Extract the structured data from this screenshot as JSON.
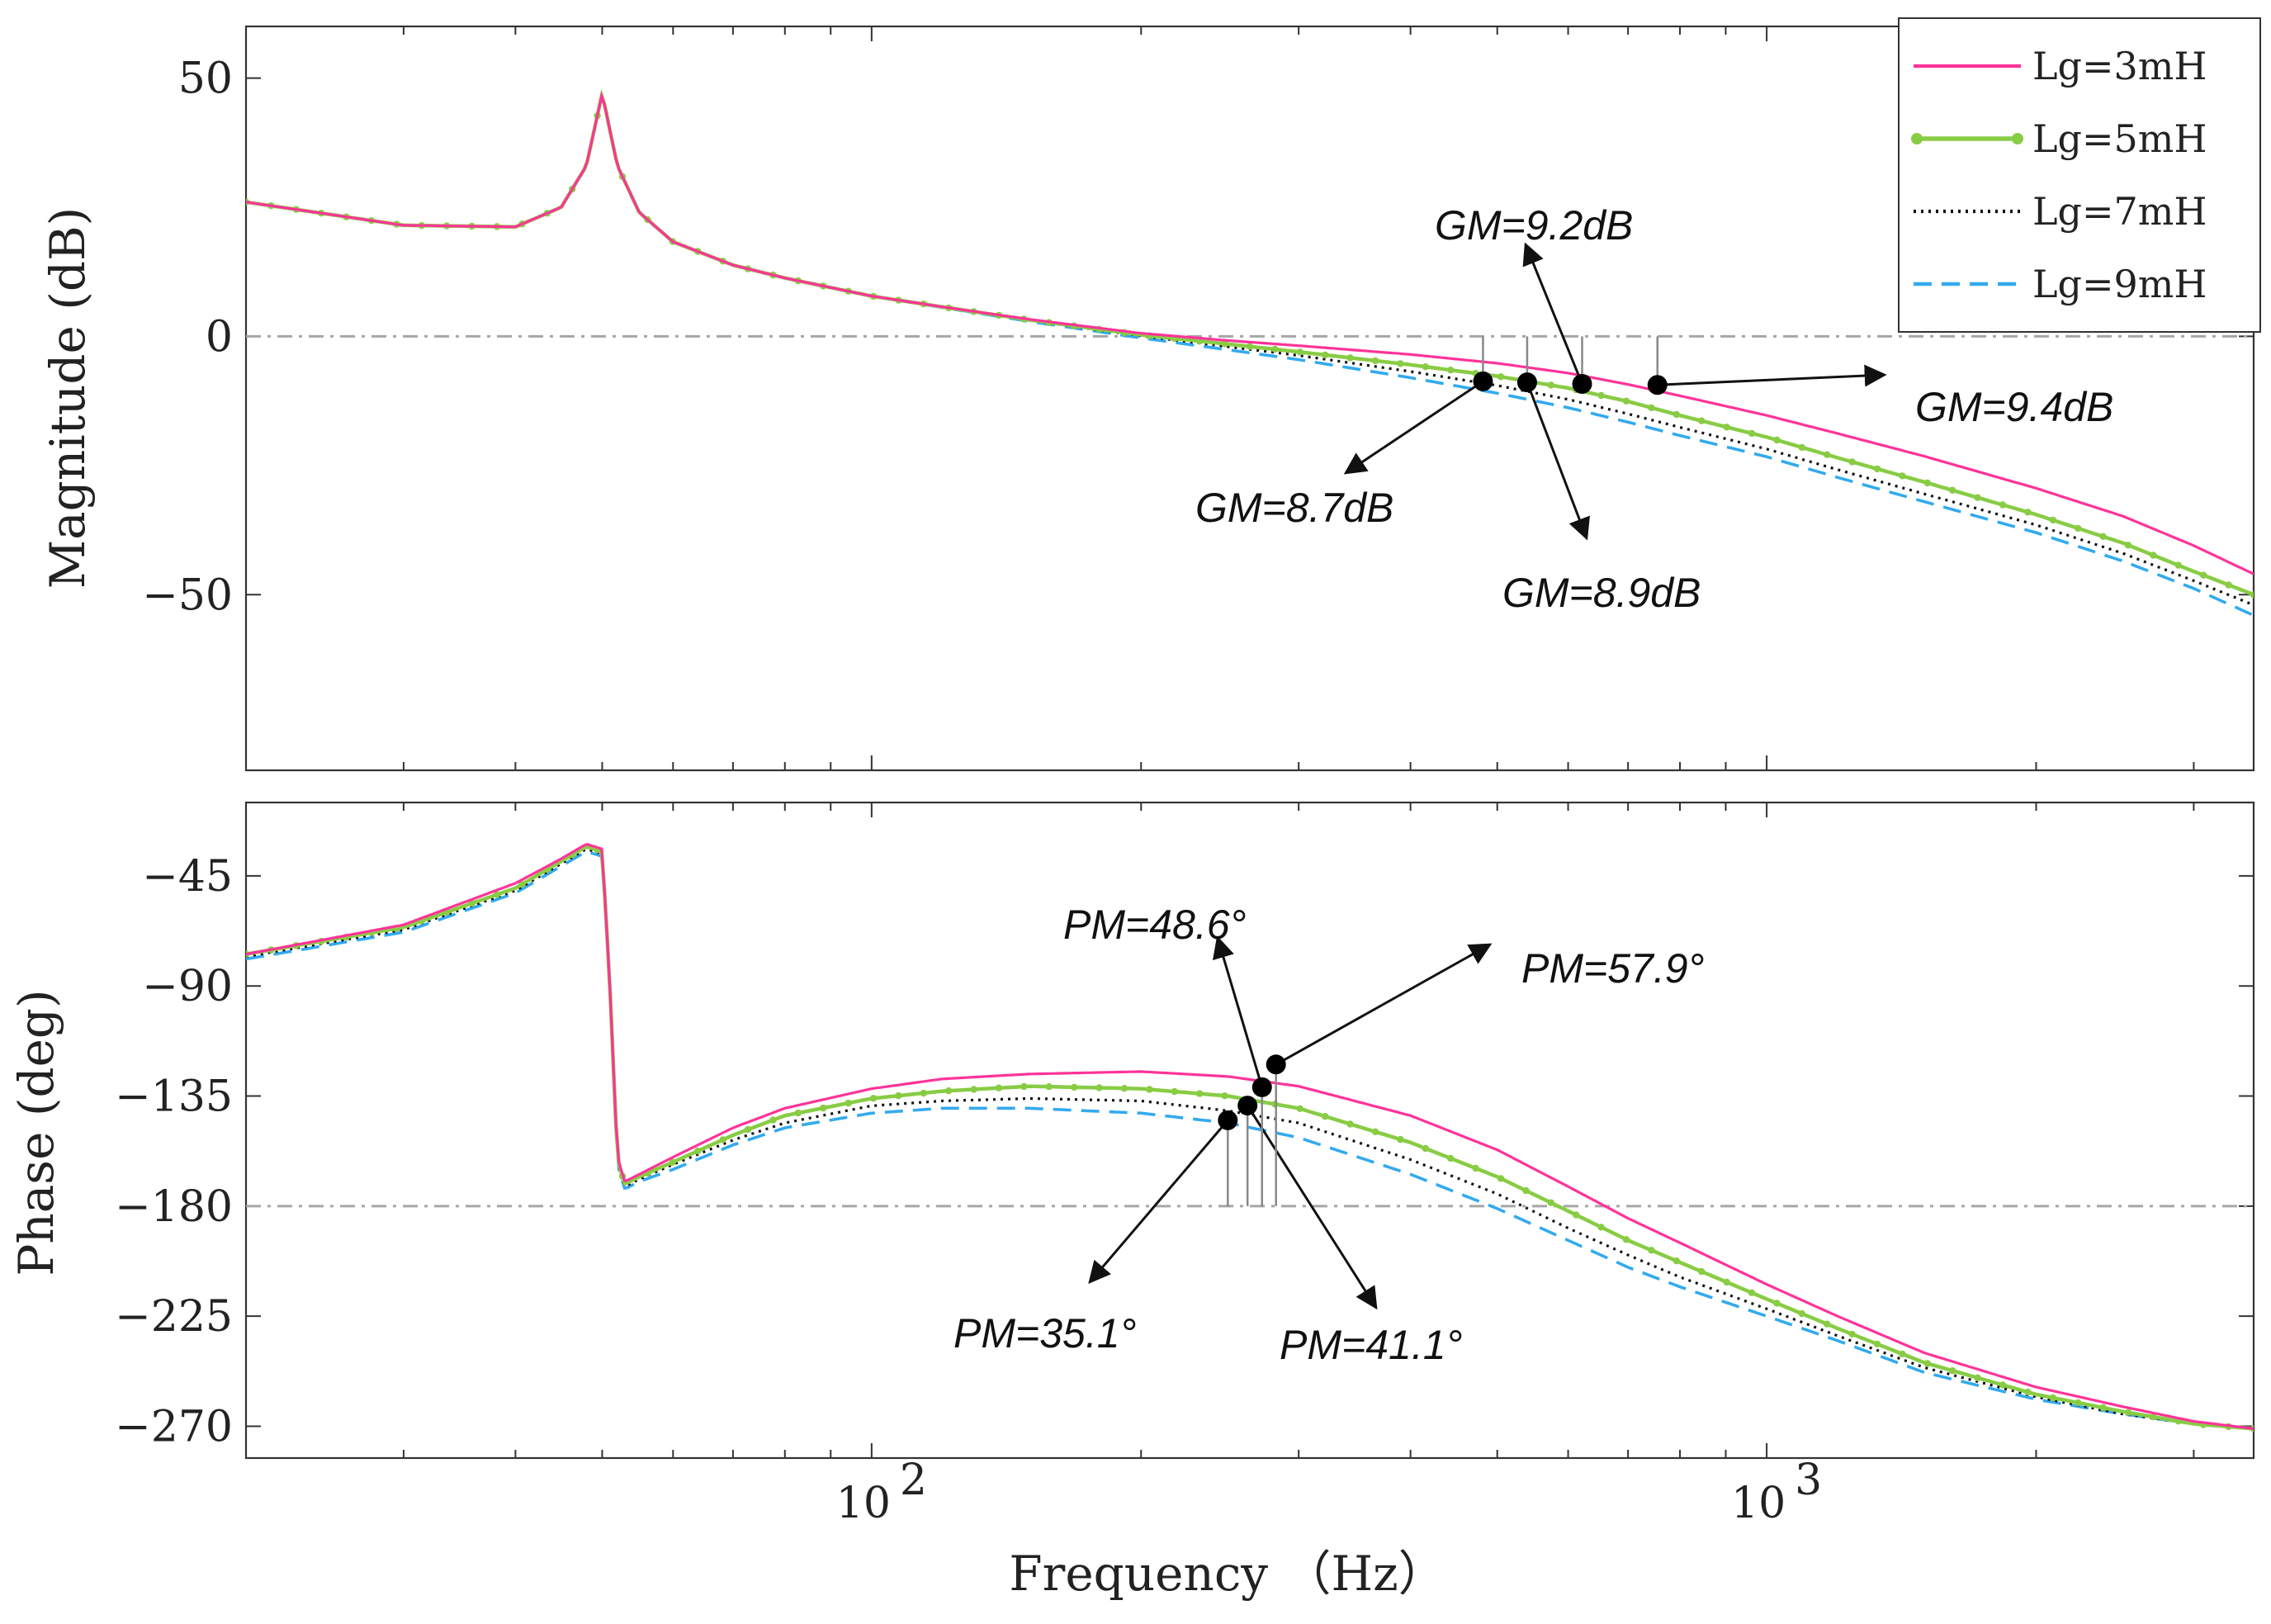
{
  "chart_data": [
    {
      "id": "magnitude",
      "type": "line",
      "ylabel": "Magnitude (dB)",
      "ylim": [
        -84,
        60
      ],
      "yticks": [
        50,
        0,
        -50
      ],
      "ytick_labels": [
        "50",
        "0",
        "−50"
      ],
      "xscale": "log",
      "xlim": [
        20,
        3500
      ],
      "reference_line": {
        "value": 0,
        "style": "dash-dot"
      },
      "series": [
        {
          "name": "Lg=3mH",
          "color": "#ff3399",
          "style": "solid",
          "x": [
            20,
            30,
            40,
            45,
            48,
            50,
            52,
            55,
            60,
            70,
            80,
            100,
            120,
            150,
            200,
            250,
            300,
            400,
            500,
            600,
            700,
            800,
            1000,
            1200,
            1500,
            2000,
            2500,
            3000,
            3500
          ],
          "y": [
            26,
            21.5,
            21.2,
            25,
            33,
            47,
            33,
            24,
            18.3,
            13.8,
            11.3,
            7.8,
            5.7,
            3.3,
            0.6,
            -0.8,
            -1.8,
            -3.5,
            -5.2,
            -7.1,
            -9.3,
            -11.5,
            -15.3,
            -18.8,
            -23.2,
            -29.4,
            -34.8,
            -40.5,
            -46
          ]
        },
        {
          "name": "Lg=5mH",
          "color": "#88cc44",
          "style": "solid-dotted",
          "x": [
            20,
            30,
            40,
            45,
            48,
            50,
            52,
            55,
            60,
            70,
            80,
            100,
            120,
            150,
            200,
            250,
            300,
            400,
            500,
            600,
            700,
            800,
            1000,
            1200,
            1500,
            2000,
            2500,
            3000,
            3500
          ],
          "y": [
            26,
            21.5,
            21.2,
            25,
            33,
            47,
            33,
            24,
            18.3,
            13.8,
            11.3,
            7.8,
            5.7,
            3.2,
            0.3,
            -1.5,
            -3.0,
            -5.5,
            -7.7,
            -10.0,
            -12.6,
            -15.3,
            -19.5,
            -23.5,
            -28.2,
            -34.5,
            -40.0,
            -45.5,
            -50
          ]
        },
        {
          "name": "Lg=7mH",
          "color": "#111111",
          "style": "dotted",
          "x": [
            20,
            30,
            40,
            45,
            48,
            50,
            52,
            55,
            60,
            70,
            80,
            100,
            120,
            150,
            200,
            250,
            300,
            400,
            500,
            600,
            700,
            800,
            1000,
            1200,
            1500,
            2000,
            2500,
            3000,
            3500
          ],
          "y": [
            26,
            21.5,
            21.2,
            25,
            33,
            47,
            33,
            24,
            18.3,
            13.8,
            11.3,
            7.8,
            5.7,
            3.1,
            0.1,
            -2.0,
            -3.7,
            -6.8,
            -9.5,
            -12.2,
            -15.0,
            -17.6,
            -21.8,
            -25.8,
            -30.5,
            -36.5,
            -42.0,
            -47.3,
            -52
          ]
        },
        {
          "name": "Lg=9mH",
          "color": "#33aaee",
          "style": "dashed",
          "x": [
            20,
            30,
            40,
            45,
            48,
            50,
            52,
            55,
            60,
            70,
            80,
            100,
            120,
            150,
            200,
            250,
            300,
            400,
            500,
            600,
            700,
            800,
            1000,
            1200,
            1500,
            2000,
            2500,
            3000,
            3500
          ],
          "y": [
            26,
            21.5,
            21.2,
            25,
            33,
            47,
            33,
            24,
            18.3,
            13.8,
            11.3,
            7.8,
            5.6,
            2.9,
            -0.3,
            -2.6,
            -4.5,
            -8.0,
            -11.0,
            -13.8,
            -16.6,
            -19.2,
            -23.3,
            -27.3,
            -32.0,
            -38.0,
            -43.5,
            -48.8,
            -54
          ]
        }
      ],
      "markers": [
        {
          "label": "GM=8.7dB",
          "freq": 482,
          "value": -8.7
        },
        {
          "label": "GM=8.9dB",
          "freq": 540,
          "value": -8.9
        },
        {
          "label": "GM=9.2dB",
          "freq": 622,
          "value": -9.2
        },
        {
          "label": "GM=9.4dB",
          "freq": 755,
          "value": -9.4
        }
      ]
    },
    {
      "id": "phase",
      "type": "line",
      "xlabel": "Frequency （Hz）",
      "ylabel": "Phase (deg)",
      "ylim": [
        -283,
        -15
      ],
      "yticks": [
        -45,
        -90,
        -135,
        -180,
        -225,
        -270
      ],
      "ytick_labels": [
        "−45",
        "−90",
        "−135",
        "−180",
        "−225",
        "−270"
      ],
      "xscale": "log",
      "xlim": [
        20,
        3500
      ],
      "xticks": [
        100,
        1000
      ],
      "xtick_bases": [
        "10",
        "10"
      ],
      "xtick_exps": [
        "2",
        "3"
      ],
      "reference_line": {
        "value": -180,
        "style": "dash-dot"
      },
      "series": [
        {
          "name": "Lg=3mH",
          "color": "#ff3399",
          "style": "solid",
          "x": [
            20,
            30,
            40,
            45,
            48,
            50,
            51,
            52,
            53,
            55,
            60,
            70,
            80,
            100,
            120,
            150,
            200,
            250,
            300,
            400,
            500,
            600,
            700,
            800,
            1000,
            1200,
            1500,
            2000,
            2500,
            3000,
            3500
          ],
          "y": [
            -77,
            -65,
            -48,
            -38,
            -32,
            -34,
            -90,
            -160,
            -170,
            -167,
            -160,
            -148,
            -140,
            -132,
            -128,
            -126,
            -125,
            -127,
            -131,
            -143,
            -157,
            -172,
            -185,
            -195,
            -212,
            -225,
            -240,
            -254,
            -262,
            -268,
            -271
          ]
        },
        {
          "name": "Lg=5mH",
          "color": "#88cc44",
          "style": "solid-dotted",
          "x": [
            20,
            30,
            40,
            45,
            48,
            50,
            51,
            52,
            53,
            55,
            60,
            70,
            80,
            100,
            120,
            150,
            200,
            250,
            300,
            400,
            500,
            600,
            700,
            800,
            1000,
            1200,
            1500,
            2000,
            2500,
            3000,
            3500
          ],
          "y": [
            -77,
            -66,
            -50,
            -39,
            -33,
            -35,
            -90,
            -161,
            -171,
            -168,
            -162,
            -151,
            -143,
            -136,
            -133,
            -131,
            -132,
            -135,
            -140,
            -154,
            -168,
            -182,
            -194,
            -203,
            -218,
            -230,
            -244,
            -257,
            -264,
            -269,
            -271
          ]
        },
        {
          "name": "Lg=7mH",
          "color": "#111111",
          "style": "dotted",
          "x": [
            20,
            30,
            40,
            45,
            48,
            50,
            51,
            52,
            53,
            55,
            60,
            70,
            80,
            100,
            120,
            150,
            200,
            250,
            300,
            400,
            500,
            600,
            700,
            800,
            1000,
            1200,
            1500,
            2000,
            2500,
            3000,
            3500
          ],
          "y": [
            -78,
            -67,
            -51,
            -40,
            -34,
            -36,
            -90,
            -162,
            -172,
            -169,
            -163,
            -153,
            -146,
            -139,
            -137,
            -136,
            -137,
            -141,
            -146,
            -161,
            -175,
            -189,
            -200,
            -209,
            -222,
            -233,
            -246,
            -258,
            -265,
            -269,
            -271
          ]
        },
        {
          "name": "Lg=9mH",
          "color": "#33aaee",
          "style": "dashed",
          "x": [
            20,
            30,
            40,
            45,
            48,
            50,
            51,
            52,
            53,
            55,
            60,
            70,
            80,
            100,
            120,
            150,
            200,
            250,
            300,
            400,
            500,
            600,
            700,
            800,
            1000,
            1200,
            1500,
            2000,
            2500,
            3000,
            3500
          ],
          "y": [
            -79,
            -68,
            -52,
            -41,
            -35,
            -37,
            -91,
            -163,
            -173,
            -170,
            -165,
            -155,
            -148,
            -142,
            -140,
            -140,
            -142,
            -146,
            -152,
            -167,
            -181,
            -194,
            -205,
            -213,
            -225,
            -235,
            -248,
            -259,
            -265,
            -269,
            -271
          ]
        }
      ],
      "markers": [
        {
          "label": "PM=35.1°",
          "freq": 250,
          "value": -144.9
        },
        {
          "label": "PM=41.1°",
          "freq": 263,
          "value": -138.9
        },
        {
          "label": "PM=48.6°",
          "freq": 273,
          "value": -131.4
        },
        {
          "label": "PM=57.9°",
          "freq": 283,
          "value": -122.1
        }
      ]
    }
  ],
  "legend": {
    "entries": [
      "Lg=3mH",
      "Lg=5mH",
      "Lg=7mH",
      "Lg=9mH"
    ],
    "placement": "top-right"
  }
}
